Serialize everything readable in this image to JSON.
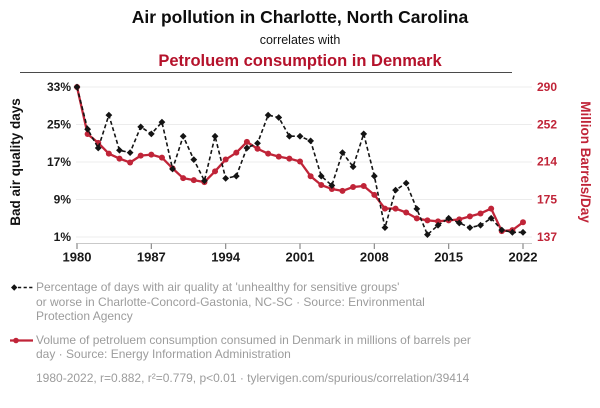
{
  "colors": {
    "title_red": "#b5122b",
    "series_black": "#141414",
    "series_red": "#c02438",
    "legend_gray": "#9c9c9c",
    "gridline": "#ececec",
    "axis_line": "#c9c9c9"
  },
  "chart_data": {
    "type": "line",
    "title": "Air pollution in Charlotte, North Carolina",
    "subtitle": "correlates with",
    "title2": "Petroluem consumption in Denmark",
    "x": [
      1980,
      1981,
      1982,
      1983,
      1984,
      1985,
      1986,
      1987,
      1988,
      1989,
      1990,
      1991,
      1992,
      1993,
      1994,
      1995,
      1996,
      1997,
      1998,
      1999,
      2000,
      2001,
      2002,
      2003,
      2004,
      2005,
      2006,
      2007,
      2008,
      2009,
      2010,
      2011,
      2012,
      2013,
      2014,
      2015,
      2016,
      2017,
      2018,
      2019,
      2020,
      2021,
      2022
    ],
    "x_ticks": [
      1980,
      1987,
      1994,
      2001,
      2008,
      2015,
      2022
    ],
    "left_axis": {
      "label": "Bad air quality days",
      "ticks": [
        "33%",
        "25%",
        "17%",
        "9%",
        "1%"
      ],
      "tick_values": [
        33,
        25,
        17,
        9,
        1
      ],
      "range": [
        1,
        33
      ]
    },
    "right_axis": {
      "label": "Million Barrels/Day",
      "ticks": [
        "290",
        "252",
        "214",
        "175",
        "137"
      ],
      "tick_values": [
        290,
        252,
        214,
        175,
        137
      ],
      "range": [
        137,
        290
      ]
    },
    "grid": "horizontal",
    "series": [
      {
        "name": "Air quality Charlotte (% bad days)",
        "axis": "left",
        "color": "#141414",
        "style": "dashed-diamond",
        "values": [
          33,
          24,
          20,
          27,
          19.5,
          19,
          24.5,
          23,
          25.5,
          15.5,
          22.5,
          17.5,
          13,
          22.5,
          13.5,
          14,
          20,
          21,
          27,
          26.5,
          22.5,
          22.5,
          21.5,
          14,
          12,
          19,
          16,
          23,
          14,
          3,
          11,
          12.5,
          7,
          1.5,
          3.5,
          5,
          4,
          3,
          3.5,
          5,
          2.5,
          2,
          2
        ]
      },
      {
        "name": "Petroleum consumption Denmark (million barrels/day)",
        "axis": "right",
        "color": "#c02438",
        "style": "solid-circle",
        "values": [
          290,
          242,
          233,
          222,
          217,
          213,
          220,
          221,
          218,
          207,
          197,
          195,
          193,
          204,
          216,
          223,
          234,
          227,
          222,
          219,
          217,
          214,
          199,
          190,
          186,
          184,
          188,
          189,
          180,
          166,
          166,
          162,
          156,
          154,
          153,
          154,
          155,
          158,
          161,
          166,
          143,
          144,
          152
        ]
      }
    ]
  },
  "legend": {
    "items": [
      {
        "text": "Percentage of days with air quality at 'unhealthy for sensitive groups'\nor worse in Charlotte-Concord-Gastonia, NC-SC · Source: Environmental\nProtection Agency"
      },
      {
        "text": "Volume of petroluem consumption consumed in Denmark in millions of barrels per\nday · Source: Energy Information Administration"
      }
    ],
    "stats_line": "1980-2022, r=0.882, r²=0.779, p<0.01 · tylervigen.com/spurious/correlation/39414"
  }
}
